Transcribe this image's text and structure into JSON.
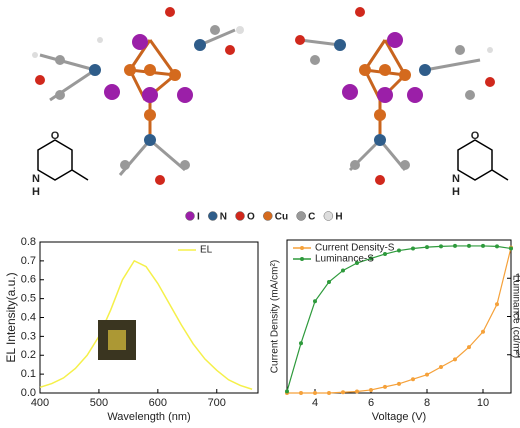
{
  "atom_legend": [
    "I",
    "N",
    "O",
    "Cu",
    "C",
    "H"
  ],
  "structure_labels": {
    "left": [
      "O",
      "N",
      "H"
    ],
    "right": [
      "O",
      "N",
      "H"
    ]
  },
  "chart_data": [
    {
      "type": "line",
      "xlabel": "Wavelength (nm)",
      "ylabel": "EL Intensity(a.u.)",
      "xlim": [
        400,
        770
      ],
      "xticks": [
        400,
        500,
        600,
        700
      ],
      "ylim": [
        0,
        0.8
      ],
      "yticks": [
        {
          "value": 0,
          "label": "0.0"
        },
        0.1,
        0.2,
        0.3,
        0.4,
        0.5,
        0.6,
        0.7,
        0.8
      ],
      "x": [
        400,
        420,
        440,
        460,
        480,
        500,
        520,
        540,
        560,
        580,
        600,
        620,
        640,
        660,
        680,
        700,
        720,
        740,
        760
      ],
      "series": [
        {
          "name": "EL",
          "color": "#f5f04a",
          "values": [
            0.03,
            0.05,
            0.08,
            0.13,
            0.2,
            0.3,
            0.44,
            0.6,
            0.7,
            0.67,
            0.58,
            0.47,
            0.36,
            0.26,
            0.18,
            0.12,
            0.07,
            0.04,
            0.02
          ]
        }
      ],
      "legend": "upper right"
    },
    {
      "type": "line",
      "xlabel": "Voltage (V)",
      "ylabel": "Current Density (mA/cm²)",
      "y2label": "Luminance (cd/m²)",
      "xlim": [
        3,
        11
      ],
      "xticks": [
        4,
        6,
        8,
        10
      ],
      "ylim": [
        0,
        100
      ],
      "y2lim": [
        1,
        10000
      ],
      "y2ticks": [
        10,
        100,
        1000
      ],
      "y2log": true,
      "x": [
        3,
        3.5,
        4,
        4.5,
        5,
        5.5,
        6,
        6.5,
        7,
        7.5,
        8,
        8.5,
        9,
        9.5,
        10,
        10.5,
        11
      ],
      "series": [
        {
          "name": "Current Density-S",
          "color": "#f5a13a",
          "values": [
            0,
            0,
            0,
            0,
            0.5,
            1,
            2,
            4,
            6,
            9,
            12,
            17,
            22,
            30,
            40,
            58,
            95
          ]
        },
        {
          "name": "Luminance-S",
          "color": "#2e9a3c",
          "axis": "y2",
          "values": [
            1.1,
            20,
            250,
            800,
            1600,
            2500,
            3300,
            4300,
            5300,
            6000,
            6500,
            6800,
            7000,
            7000,
            7000,
            6800,
            6000
          ]
        }
      ],
      "legend": "upper left"
    }
  ]
}
